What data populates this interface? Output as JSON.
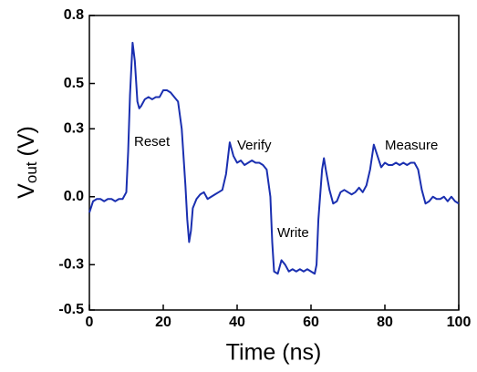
{
  "chart_data": {
    "type": "line",
    "x_label": "Time (ns)",
    "y_label": {
      "main": "V",
      "subscript": "out",
      "unit": "(V)"
    },
    "annotations": [
      "Reset",
      "Verify",
      "Write",
      "Measure"
    ],
    "xlim": [
      0,
      100
    ],
    "xticks": [
      0,
      20,
      40,
      60,
      80,
      100
    ],
    "ylim": [
      -0.5,
      0.8
    ],
    "yticks": [
      -0.5,
      -0.3,
      {
        "value": 0,
        "label": "0.0"
      },
      0.3,
      0.5,
      0.8
    ],
    "series": [
      {
        "color": "#1a2fb0",
        "x": [
          0,
          1,
          2,
          3,
          4,
          5,
          6,
          7,
          8,
          9,
          10,
          10.5,
          11,
          11.7,
          12.3,
          13,
          13.5,
          14,
          15,
          16,
          17,
          18,
          19,
          20,
          21,
          22,
          23,
          24,
          25,
          26,
          26.5,
          27,
          27.5,
          28,
          29,
          30,
          31,
          32,
          33,
          34,
          35,
          36,
          37,
          38,
          39,
          40,
          41,
          42,
          43,
          44,
          45,
          46,
          47,
          48,
          49,
          49.5,
          50,
          51,
          52,
          53,
          54,
          55,
          56,
          57,
          58,
          59,
          60,
          61,
          61.5,
          62,
          63,
          63.5,
          64,
          65,
          66,
          67,
          68,
          69,
          70,
          71,
          72,
          73,
          74,
          75,
          76,
          77,
          78,
          79,
          80,
          81,
          82,
          83,
          84,
          85,
          86,
          87,
          88,
          89,
          90,
          91,
          92,
          93,
          94,
          95,
          96,
          97,
          98,
          99,
          100
        ],
        "values": [
          -0.07,
          -0.02,
          -0.01,
          -0.01,
          -0.02,
          -0.01,
          -0.01,
          -0.02,
          -0.01,
          -0.01,
          0.02,
          0.2,
          0.45,
          0.68,
          0.6,
          0.42,
          0.39,
          0.4,
          0.43,
          0.44,
          0.43,
          0.44,
          0.44,
          0.47,
          0.47,
          0.46,
          0.44,
          0.42,
          0.3,
          0.05,
          -0.1,
          -0.2,
          -0.15,
          -0.05,
          -0.01,
          0.01,
          0.02,
          -0.01,
          0,
          0.01,
          0.02,
          0.03,
          0.1,
          0.24,
          0.18,
          0.15,
          0.16,
          0.14,
          0.15,
          0.16,
          0.15,
          0.15,
          0.14,
          0.12,
          0,
          -0.2,
          -0.33,
          -0.34,
          -0.28,
          -0.3,
          -0.33,
          -0.32,
          -0.33,
          -0.32,
          -0.33,
          -0.32,
          -0.33,
          -0.34,
          -0.3,
          -0.1,
          0.12,
          0.17,
          0.12,
          0.03,
          -0.03,
          -0.02,
          0.02,
          0.03,
          0.02,
          0.01,
          0.02,
          0.04,
          0.02,
          0.05,
          0.12,
          0.23,
          0.18,
          0.13,
          0.15,
          0.14,
          0.14,
          0.15,
          0.14,
          0.15,
          0.14,
          0.15,
          0.15,
          0.12,
          0.03,
          -0.03,
          -0.02,
          0,
          -0.01,
          -0.01,
          0,
          -0.02,
          0,
          -0.02,
          -0.03
        ]
      }
    ]
  }
}
